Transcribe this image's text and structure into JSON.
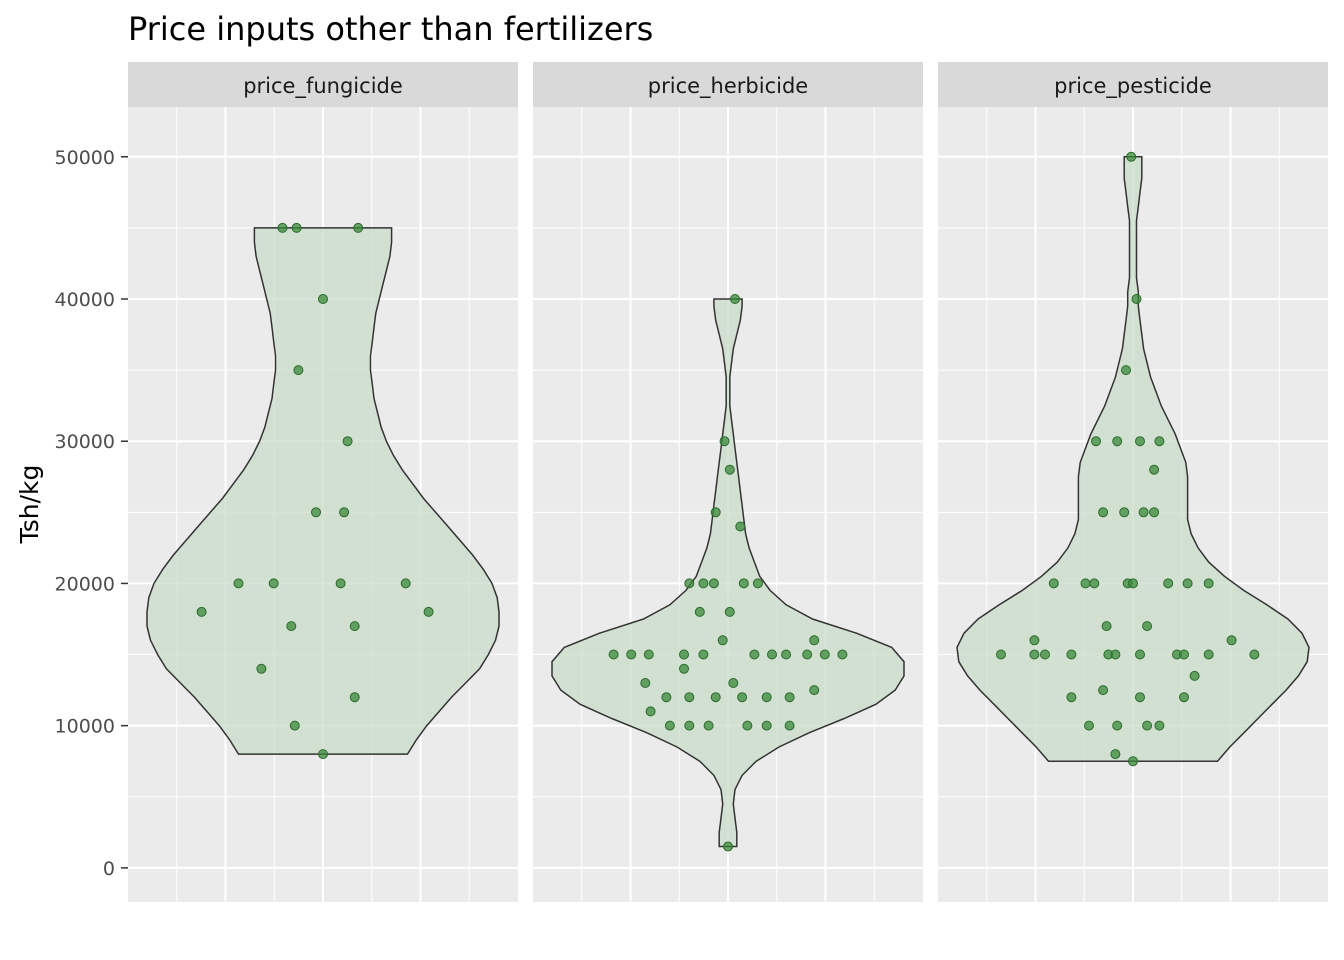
{
  "chart_data": {
    "type": "violin",
    "title": "Price inputs other than fertilizers",
    "xlabel": "",
    "ylabel": "Tsh/kg",
    "ylim": [
      -2400,
      53500
    ],
    "y_ticks": [
      0,
      10000,
      20000,
      30000,
      40000,
      50000
    ],
    "y_tick_labels": [
      "0",
      "10000",
      "20000",
      "30000",
      "40000",
      "50000"
    ],
    "grid": true,
    "legend": "none",
    "colors": {
      "panel_background": "#ebebeb",
      "strip_background": "#d9d9d9",
      "grid": "#ffffff",
      "violin_fill": "#c9dcc9",
      "violin_stroke": "#333333",
      "point_fill": "#3a8a3a",
      "point_stroke": "#2d6b2d"
    },
    "panels": [
      {
        "name": "price_fungicide",
        "label": "price_fungicide",
        "violin_profile": [
          [
            8000,
            0.48
          ],
          [
            9000,
            0.53
          ],
          [
            10000,
            0.59
          ],
          [
            11000,
            0.66
          ],
          [
            12000,
            0.73
          ],
          [
            13000,
            0.81
          ],
          [
            14000,
            0.89
          ],
          [
            15000,
            0.94
          ],
          [
            16000,
            0.98
          ],
          [
            17000,
            1.0
          ],
          [
            18000,
            1.0
          ],
          [
            19000,
            0.99
          ],
          [
            20000,
            0.96
          ],
          [
            21000,
            0.91
          ],
          [
            22000,
            0.85
          ],
          [
            23000,
            0.78
          ],
          [
            24000,
            0.71
          ],
          [
            25000,
            0.64
          ],
          [
            26000,
            0.57
          ],
          [
            27000,
            0.51
          ],
          [
            28000,
            0.45
          ],
          [
            29000,
            0.4
          ],
          [
            30000,
            0.36
          ],
          [
            31000,
            0.33
          ],
          [
            32000,
            0.31
          ],
          [
            33000,
            0.29
          ],
          [
            34000,
            0.28
          ],
          [
            35000,
            0.27
          ],
          [
            36000,
            0.27
          ],
          [
            37000,
            0.28
          ],
          [
            38000,
            0.29
          ],
          [
            39000,
            0.3
          ],
          [
            40000,
            0.32
          ],
          [
            41000,
            0.34
          ],
          [
            42000,
            0.36
          ],
          [
            43000,
            0.38
          ],
          [
            44000,
            0.39
          ],
          [
            45000,
            0.39
          ]
        ],
        "points": [
          [
            -0.69,
            18000
          ],
          [
            -0.48,
            20000
          ],
          [
            -0.28,
            20000
          ],
          [
            -0.35,
            14000
          ],
          [
            -0.18,
            17000
          ],
          [
            -0.16,
            10000
          ],
          [
            -0.23,
            45000
          ],
          [
            -0.15,
            45000
          ],
          [
            -0.14,
            35000
          ],
          [
            -0.04,
            25000
          ],
          [
            0.0,
            40000
          ],
          [
            0.0,
            8000
          ],
          [
            0.1,
            20000
          ],
          [
            0.12,
            25000
          ],
          [
            0.14,
            30000
          ],
          [
            0.18,
            17000
          ],
          [
            0.18,
            12000
          ],
          [
            0.2,
            45000
          ],
          [
            0.47,
            20000
          ],
          [
            0.6,
            18000
          ]
        ]
      },
      {
        "name": "price_herbicide",
        "label": "price_herbicide",
        "violin_profile": [
          [
            1500,
            0.05
          ],
          [
            2500,
            0.05
          ],
          [
            3500,
            0.04
          ],
          [
            4500,
            0.03
          ],
          [
            5500,
            0.04
          ],
          [
            6500,
            0.08
          ],
          [
            7500,
            0.16
          ],
          [
            8500,
            0.29
          ],
          [
            9500,
            0.46
          ],
          [
            10500,
            0.66
          ],
          [
            11500,
            0.84
          ],
          [
            12500,
            0.95
          ],
          [
            13500,
            1.0
          ],
          [
            14500,
            1.0
          ],
          [
            15500,
            0.93
          ],
          [
            16500,
            0.73
          ],
          [
            17500,
            0.48
          ],
          [
            18500,
            0.33
          ],
          [
            19500,
            0.24
          ],
          [
            20500,
            0.18
          ],
          [
            21500,
            0.15
          ],
          [
            22500,
            0.12
          ],
          [
            23500,
            0.1
          ],
          [
            24500,
            0.09
          ],
          [
            25500,
            0.08
          ],
          [
            26500,
            0.07
          ],
          [
            27500,
            0.06
          ],
          [
            28500,
            0.05
          ],
          [
            29500,
            0.04
          ],
          [
            30500,
            0.03
          ],
          [
            31500,
            0.02
          ],
          [
            32500,
            0.01
          ],
          [
            33500,
            0.01
          ],
          [
            34500,
            0.01
          ],
          [
            35500,
            0.02
          ],
          [
            36500,
            0.03
          ],
          [
            37500,
            0.05
          ],
          [
            38500,
            0.07
          ],
          [
            39500,
            0.08
          ],
          [
            40000,
            0.08
          ]
        ],
        "points": [
          [
            -0.65,
            15000
          ],
          [
            -0.55,
            15000
          ],
          [
            -0.45,
            15000
          ],
          [
            -0.47,
            13000
          ],
          [
            -0.44,
            11000
          ],
          [
            -0.35,
            12000
          ],
          [
            -0.33,
            10000
          ],
          [
            -0.25,
            15000
          ],
          [
            -0.25,
            14000
          ],
          [
            -0.22,
            20000
          ],
          [
            -0.22,
            12000
          ],
          [
            -0.22,
            10000
          ],
          [
            -0.16,
            18000
          ],
          [
            -0.14,
            20000
          ],
          [
            -0.14,
            15000
          ],
          [
            -0.11,
            10000
          ],
          [
            -0.08,
            20000
          ],
          [
            -0.07,
            25000
          ],
          [
            -0.07,
            12000
          ],
          [
            -0.03,
            16000
          ],
          [
            -0.02,
            30000
          ],
          [
            0.0,
            1500
          ],
          [
            0.01,
            18000
          ],
          [
            0.01,
            28000
          ],
          [
            0.03,
            13000
          ],
          [
            0.04,
            40000
          ],
          [
            0.07,
            24000
          ],
          [
            0.08,
            12000
          ],
          [
            0.09,
            20000
          ],
          [
            0.11,
            10000
          ],
          [
            0.15,
            15000
          ],
          [
            0.17,
            20000
          ],
          [
            0.22,
            12000
          ],
          [
            0.22,
            10000
          ],
          [
            0.25,
            15000
          ],
          [
            0.33,
            15000
          ],
          [
            0.35,
            10000
          ],
          [
            0.35,
            12000
          ],
          [
            0.45,
            15000
          ],
          [
            0.49,
            12500
          ],
          [
            0.49,
            16000
          ],
          [
            0.55,
            15000
          ],
          [
            0.65,
            15000
          ]
        ]
      },
      {
        "name": "price_pesticide",
        "label": "price_pesticide",
        "violin_profile": [
          [
            7500,
            0.48
          ],
          [
            8500,
            0.55
          ],
          [
            9500,
            0.63
          ],
          [
            10500,
            0.71
          ],
          [
            11500,
            0.79
          ],
          [
            12500,
            0.87
          ],
          [
            13500,
            0.94
          ],
          [
            14500,
            0.99
          ],
          [
            15500,
            1.0
          ],
          [
            16500,
            0.96
          ],
          [
            17500,
            0.88
          ],
          [
            18500,
            0.76
          ],
          [
            19500,
            0.63
          ],
          [
            20500,
            0.52
          ],
          [
            21500,
            0.43
          ],
          [
            22500,
            0.37
          ],
          [
            23500,
            0.33
          ],
          [
            24500,
            0.31
          ],
          [
            25500,
            0.31
          ],
          [
            26500,
            0.31
          ],
          [
            27500,
            0.31
          ],
          [
            28500,
            0.3
          ],
          [
            29500,
            0.27
          ],
          [
            30500,
            0.24
          ],
          [
            31500,
            0.2
          ],
          [
            32500,
            0.16
          ],
          [
            33500,
            0.13
          ],
          [
            34500,
            0.1
          ],
          [
            35500,
            0.08
          ],
          [
            36500,
            0.06
          ],
          [
            37500,
            0.05
          ],
          [
            38500,
            0.04
          ],
          [
            39500,
            0.03
          ],
          [
            40500,
            0.03
          ],
          [
            41500,
            0.02
          ],
          [
            42500,
            0.02
          ],
          [
            43500,
            0.02
          ],
          [
            44500,
            0.02
          ],
          [
            45500,
            0.02
          ],
          [
            46500,
            0.03
          ],
          [
            47500,
            0.04
          ],
          [
            48500,
            0.05
          ],
          [
            49500,
            0.05
          ],
          [
            50000,
            0.05
          ]
        ],
        "points": [
          [
            -0.75,
            15000
          ],
          [
            -0.56,
            16000
          ],
          [
            -0.56,
            15000
          ],
          [
            -0.5,
            15000
          ],
          [
            -0.45,
            20000
          ],
          [
            -0.35,
            15000
          ],
          [
            -0.35,
            12000
          ],
          [
            -0.27,
            20000
          ],
          [
            -0.25,
            10000
          ],
          [
            -0.22,
            20000
          ],
          [
            -0.21,
            30000
          ],
          [
            -0.17,
            25000
          ],
          [
            -0.17,
            12500
          ],
          [
            -0.15,
            17000
          ],
          [
            -0.14,
            15000
          ],
          [
            -0.1,
            15000
          ],
          [
            -0.09,
            30000
          ],
          [
            -0.09,
            10000
          ],
          [
            -0.1,
            8000
          ],
          [
            -0.05,
            25000
          ],
          [
            -0.04,
            35000
          ],
          [
            -0.03,
            20000
          ],
          [
            -0.01,
            50000
          ],
          [
            0.0,
            20000
          ],
          [
            0.0,
            7500
          ],
          [
            0.02,
            40000
          ],
          [
            0.04,
            30000
          ],
          [
            0.04,
            15000
          ],
          [
            0.04,
            12000
          ],
          [
            0.06,
            25000
          ],
          [
            0.08,
            17000
          ],
          [
            0.08,
            10000
          ],
          [
            0.12,
            28000
          ],
          [
            0.12,
            25000
          ],
          [
            0.15,
            10000
          ],
          [
            0.15,
            30000
          ],
          [
            0.2,
            20000
          ],
          [
            0.25,
            15000
          ],
          [
            0.29,
            12000
          ],
          [
            0.29,
            15000
          ],
          [
            0.31,
            20000
          ],
          [
            0.35,
            13500
          ],
          [
            0.43,
            15000
          ],
          [
            0.43,
            20000
          ],
          [
            0.56,
            16000
          ],
          [
            0.69,
            15000
          ]
        ]
      }
    ]
  }
}
